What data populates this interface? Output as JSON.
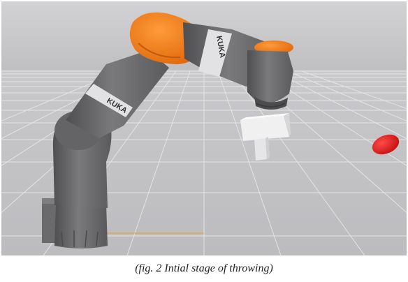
{
  "scene": {
    "robot_brand_label_upper": "KUKA",
    "robot_brand_label_lower": "KUKA",
    "colors": {
      "sky_top": "#cfcfd1",
      "sky_bottom": "#bdbdc0",
      "floor": "#c4c4c7",
      "grid_line": "#e6e6e8",
      "robot_body": "#6e6e70",
      "robot_shade": "#555557",
      "robot_accent": "#f07f1a",
      "target": "#e01818",
      "base_line": "#e9a23a"
    }
  },
  "caption": {
    "text": "(fig. 2 Intial stage of throwing)"
  }
}
